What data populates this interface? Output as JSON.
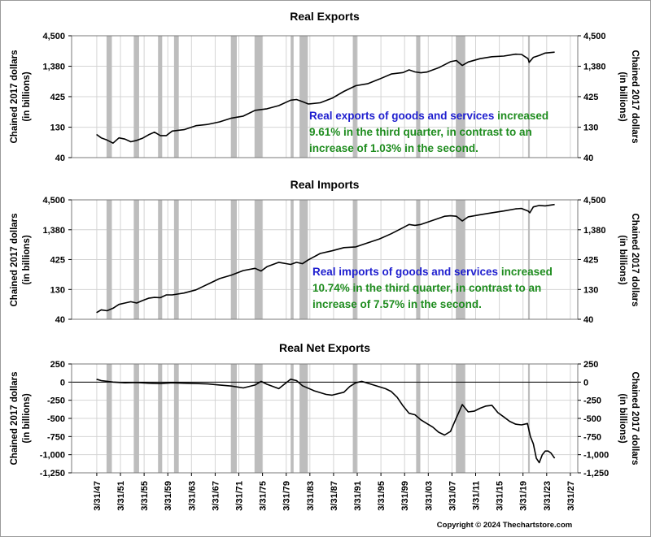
{
  "copyright": "Copyright © 2024 Thechartstore.com",
  "colors": {
    "recession": "#bdbdbd",
    "line": "#000000",
    "note_blue": "#1f1fcf",
    "note_green": "#1e8c1e",
    "grid": "#d4d4d4"
  },
  "recessions": [
    [
      1948.9,
      1949.8
    ],
    [
      1953.5,
      1954.4
    ],
    [
      1957.6,
      1958.3
    ],
    [
      1960.3,
      1961.1
    ],
    [
      1969.9,
      1970.9
    ],
    [
      1973.9,
      1975.2
    ],
    [
      1980.0,
      1980.5
    ],
    [
      1981.5,
      1982.9
    ],
    [
      1990.5,
      1991.2
    ],
    [
      2001.2,
      2001.9
    ],
    [
      2007.9,
      2009.5
    ],
    [
      2020.1,
      2020.4
    ]
  ],
  "x_tick_labels": [
    "3/31/47",
    "3/31/51",
    "3/31/55",
    "3/31/59",
    "3/31/63",
    "3/31/67",
    "3/31/71",
    "3/31/75",
    "3/31/79",
    "3/31/83",
    "3/31/87",
    "3/31/91",
    "3/31/95",
    "3/31/99",
    "3/31/03",
    "3/31/07",
    "3/31/11",
    "3/31/15",
    "3/31/19",
    "3/31/23",
    "3/31/27"
  ],
  "chart_data": [
    {
      "type": "line",
      "title": "Real Exports",
      "ylabel": [
        "Chained 2017 dollars",
        "(in billions)"
      ],
      "yscale": "log",
      "ylim": [
        40,
        4500
      ],
      "yticks": [
        40,
        130,
        425,
        1380,
        4500
      ],
      "ytick_labels": [
        "40",
        "130",
        "425",
        "1,380",
        "4,500"
      ],
      "xlim": [
        1943.0,
        2028.5
      ],
      "series": [
        {
          "x": [
            1947.2,
            1948,
            1949,
            1950,
            1951,
            1952,
            1953,
            1954,
            1955,
            1956,
            1957,
            1958,
            1959,
            1960,
            1962,
            1964,
            1966,
            1968,
            1970,
            1972,
            1974,
            1976,
            1978,
            1980,
            1981,
            1982,
            1983,
            1985,
            1987,
            1989,
            1991,
            1993,
            1995,
            1997,
            1998,
            1999,
            2000,
            2001,
            2002,
            2003,
            2005,
            2007,
            2008,
            2009,
            2010,
            2012,
            2014,
            2016,
            2018,
            2019,
            2020.1,
            2020.3,
            2021,
            2022,
            2023,
            2024.6
          ],
          "y": [
            98,
            86,
            79,
            70,
            86,
            82,
            74,
            78,
            85,
            97,
            107,
            94,
            94,
            112,
            118,
            138,
            145,
            160,
            185,
            200,
            250,
            265,
            300,
            370,
            380,
            350,
            320,
            335,
            400,
            520,
            650,
            700,
            840,
            1020,
            1050,
            1080,
            1200,
            1110,
            1070,
            1100,
            1300,
            1650,
            1720,
            1420,
            1630,
            1850,
            2000,
            2050,
            2200,
            2180,
            1850,
            1600,
            1950,
            2100,
            2300,
            2380
          ]
        }
      ]
    },
    {
      "type": "line",
      "title": "Real Imports",
      "ylabel": [
        "Chained 2017 dollars",
        "(in billions)"
      ],
      "yscale": "log",
      "ylim": [
        40,
        4500
      ],
      "yticks": [
        40,
        130,
        425,
        1380,
        4500
      ],
      "ytick_labels": [
        "40",
        "130",
        "425",
        "1,380",
        "4,500"
      ],
      "xlim": [
        1943.0,
        2028.5
      ],
      "series": [
        {
          "x": [
            1947.2,
            1948,
            1949,
            1950,
            1951,
            1952,
            1953,
            1954,
            1955,
            1956,
            1957,
            1958,
            1959,
            1960,
            1962,
            1964,
            1966,
            1968,
            1970,
            1972,
            1974,
            1975,
            1976,
            1978,
            1980,
            1981,
            1982,
            1983,
            1985,
            1987,
            1989,
            1991,
            1993,
            1995,
            1997,
            1999,
            2000,
            2001,
            2002,
            2004,
            2006,
            2007,
            2008,
            2009,
            2010,
            2012,
            2014,
            2016,
            2018,
            2019,
            2020.1,
            2020.4,
            2021,
            2022,
            2023,
            2024.6
          ],
          "y": [
            52,
            58,
            56,
            62,
            72,
            76,
            80,
            76,
            84,
            92,
            95,
            94,
            105,
            105,
            113,
            128,
            160,
            200,
            230,
            275,
            300,
            270,
            320,
            380,
            350,
            380,
            360,
            420,
            540,
            600,
            680,
            700,
            820,
            960,
            1180,
            1500,
            1700,
            1640,
            1700,
            2000,
            2350,
            2400,
            2350,
            1950,
            2300,
            2500,
            2700,
            2900,
            3150,
            3200,
            2900,
            2700,
            3400,
            3600,
            3550,
            3750
          ]
        }
      ]
    },
    {
      "type": "line",
      "title": "Real Net Exports",
      "ylabel": [
        "Chained 2017 dollars",
        "(in billions)"
      ],
      "yscale": "linear",
      "ylim": [
        -1250,
        250
      ],
      "yticks": [
        -1250,
        -1000,
        -750,
        -500,
        -250,
        0,
        250
      ],
      "ytick_labels": [
        "-1,250",
        "-1,000",
        "-750",
        "-500",
        "-250",
        "0",
        "250"
      ],
      "xlim": [
        1943.0,
        2028.5
      ],
      "series": [
        {
          "x": [
            1947.2,
            1948,
            1950,
            1952,
            1954,
            1956,
            1958,
            1960,
            1962,
            1964,
            1966,
            1968,
            1970,
            1972,
            1974,
            1975,
            1976,
            1978,
            1980,
            1981,
            1982,
            1984,
            1986,
            1987,
            1989,
            1990,
            1991,
            1992,
            1994,
            1996,
            1997,
            1998,
            1999,
            2000,
            2001,
            2002,
            2003,
            2004,
            2005,
            2006,
            2007,
            2008,
            2009,
            2010,
            2011,
            2012,
            2013,
            2014,
            2015,
            2016,
            2017,
            2018,
            2019,
            2020.0,
            2020.5,
            2021,
            2021.5,
            2022,
            2022.5,
            2023,
            2023.5,
            2024,
            2024.6
          ],
          "y": [
            40,
            20,
            0,
            -10,
            -5,
            -15,
            -20,
            -10,
            -15,
            -20,
            -25,
            -40,
            -55,
            -80,
            -40,
            10,
            -30,
            -90,
            40,
            20,
            -50,
            -120,
            -170,
            -180,
            -140,
            -60,
            -10,
            10,
            -40,
            -90,
            -130,
            -210,
            -330,
            -430,
            -450,
            -520,
            -570,
            -620,
            -690,
            -730,
            -680,
            -490,
            -310,
            -410,
            -400,
            -360,
            -330,
            -320,
            -420,
            -480,
            -540,
            -580,
            -590,
            -570,
            -750,
            -850,
            -1050,
            -1110,
            -1000,
            -950,
            -950,
            -980,
            -1050
          ]
        }
      ]
    }
  ],
  "annotations": [
    {
      "lines": [
        [
          {
            "t": "Real exports of goods and services ",
            "c": "blue"
          },
          {
            "t": "increased",
            "c": "green"
          }
        ],
        [
          {
            "t": "9.61% in the third quarter, in contrast to an",
            "c": "green"
          }
        ],
        [
          {
            "t": "increase of 1.03% in the second.",
            "c": "green"
          }
        ]
      ]
    },
    {
      "lines": [
        [
          {
            "t": "Real imports of goods and services ",
            "c": "blue"
          },
          {
            "t": "increased",
            "c": "green"
          }
        ],
        [
          {
            "t": "10.74% in the third quarter, in contrast to an",
            "c": "green"
          }
        ],
        [
          {
            "t": "increase of 7.57% in the second.",
            "c": "green"
          }
        ]
      ]
    }
  ]
}
